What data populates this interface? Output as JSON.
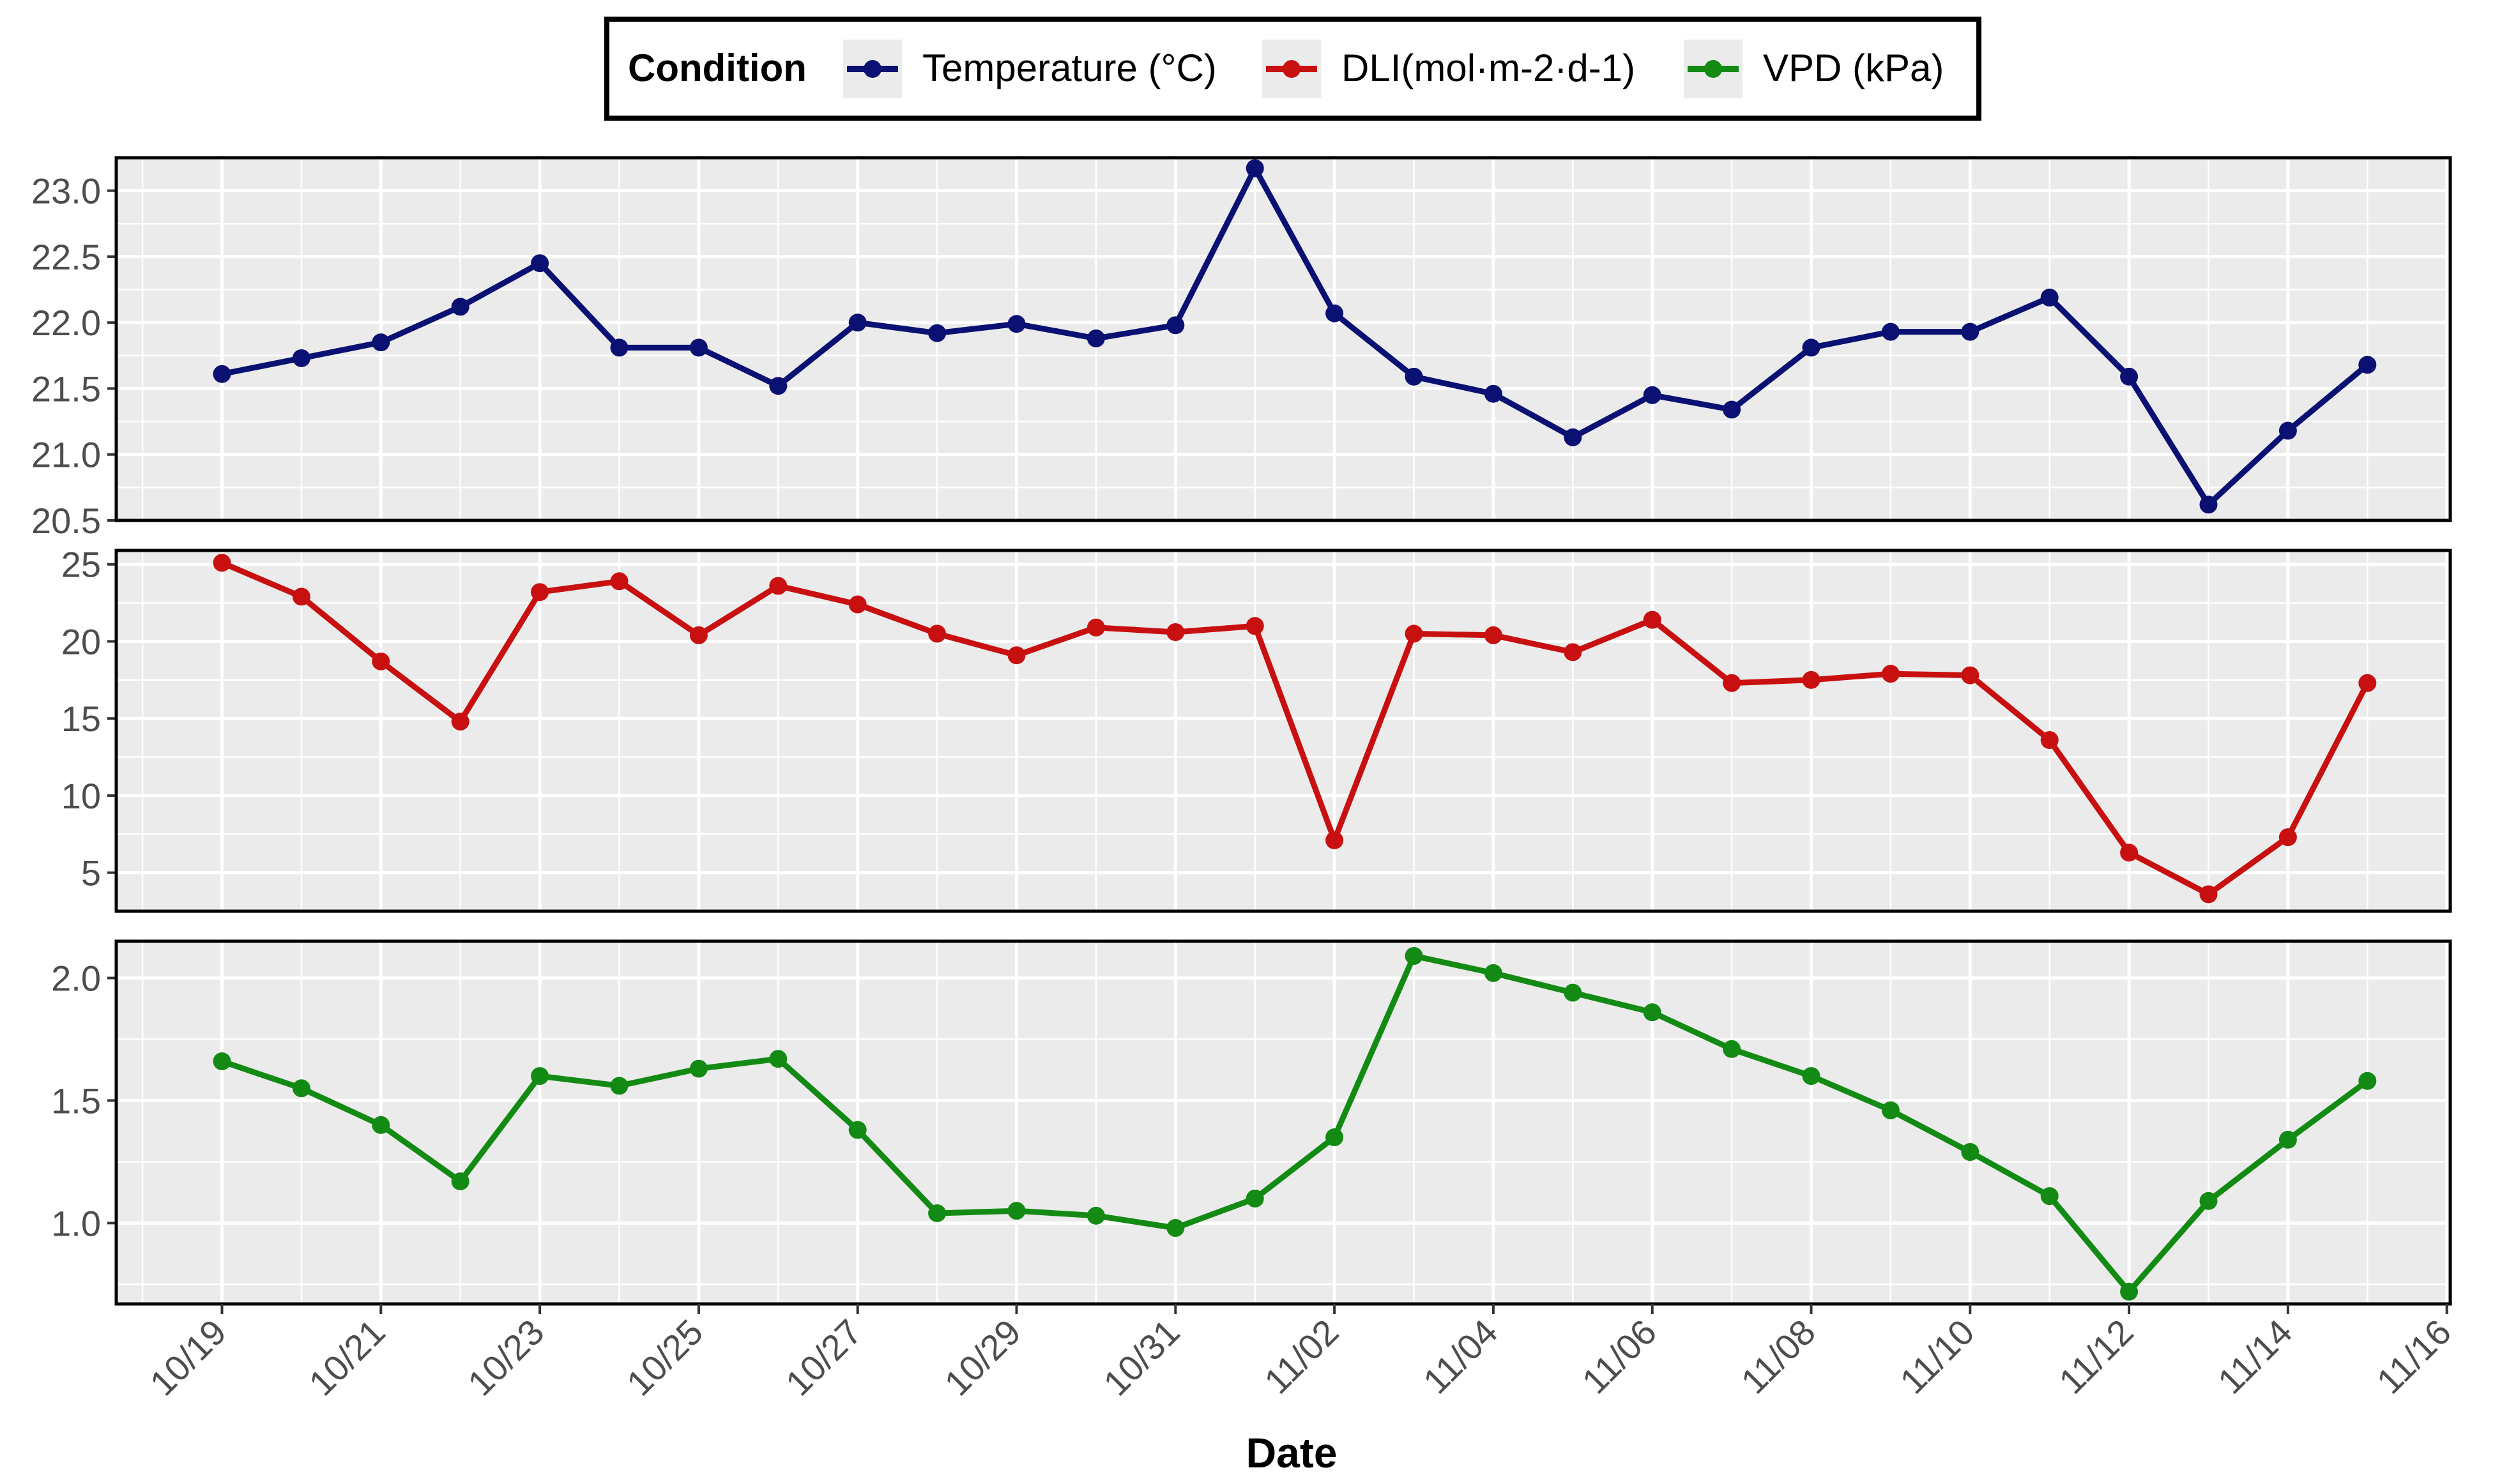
{
  "chart_data": {
    "type": "line",
    "layout": "stacked-facets",
    "xlabel": "Date",
    "x_tick_labels": [
      "10/19",
      "10/21",
      "10/23",
      "10/25",
      "10/27",
      "10/29",
      "10/31",
      "11/02",
      "11/04",
      "11/06",
      "11/08",
      "11/10",
      "11/12",
      "11/14",
      "11/16"
    ],
    "dates": [
      "10/19",
      "10/20",
      "10/21",
      "10/22",
      "10/23",
      "10/24",
      "10/25",
      "10/26",
      "10/27",
      "10/28",
      "10/29",
      "10/30",
      "10/31",
      "11/01",
      "11/02",
      "11/03",
      "11/04",
      "11/05",
      "11/06",
      "11/07",
      "11/08",
      "11/09",
      "11/10",
      "11/11",
      "11/12",
      "11/13",
      "11/14",
      "11/15"
    ],
    "legend": {
      "title": "Condition",
      "position": "top-center",
      "entries": [
        {
          "name": "Temperature (°C)",
          "color": "#0a1172"
        },
        {
          "name": "DLI(mol·m-2·d-1)",
          "color": "#c81010"
        },
        {
          "name": "VPD (kPa)",
          "color": "#138a13"
        }
      ]
    },
    "panels": [
      {
        "series_name": "Temperature (°C)",
        "color": "#0a1172",
        "ylim": [
          20.5,
          23.25
        ],
        "y_ticks": [
          20.5,
          21.0,
          21.5,
          22.0,
          22.5,
          23.0
        ],
        "y_tick_labels": [
          "20.5",
          "21.0",
          "21.5",
          "22.0",
          "22.5",
          "23.0"
        ],
        "values": [
          21.61,
          21.73,
          21.85,
          22.12,
          22.45,
          21.81,
          21.81,
          21.52,
          22.0,
          21.92,
          21.99,
          21.88,
          21.98,
          23.17,
          22.07,
          21.59,
          21.46,
          21.13,
          21.45,
          21.34,
          21.81,
          21.93,
          21.93,
          22.19,
          21.59,
          20.62,
          21.18,
          21.68
        ]
      },
      {
        "series_name": "DLI(mol·m-2·d-1)",
        "color": "#c81010",
        "ylim": [
          2.5,
          25.9
        ],
        "y_ticks": [
          5,
          10,
          15,
          20,
          25
        ],
        "y_tick_labels": [
          "5",
          "10",
          "15",
          "20",
          "25"
        ],
        "values": [
          25.1,
          22.9,
          18.7,
          14.8,
          23.2,
          23.9,
          20.4,
          23.6,
          22.4,
          20.5,
          19.1,
          20.9,
          20.6,
          21.0,
          7.1,
          20.5,
          20.4,
          19.3,
          21.4,
          17.3,
          17.5,
          17.9,
          17.8,
          13.6,
          6.3,
          3.6,
          7.3,
          17.3
        ]
      },
      {
        "series_name": "VPD (kPa)",
        "color": "#138a13",
        "ylim": [
          0.67,
          2.15
        ],
        "y_ticks": [
          1.0,
          1.5,
          2.0
        ],
        "y_tick_labels": [
          "1.0",
          "1.5",
          "2.0"
        ],
        "values": [
          1.66,
          1.55,
          1.4,
          1.17,
          1.6,
          1.56,
          1.63,
          1.67,
          1.38,
          1.04,
          1.05,
          1.03,
          0.98,
          1.1,
          1.35,
          2.09,
          2.02,
          1.94,
          1.86,
          1.71,
          1.6,
          1.46,
          1.29,
          1.11,
          0.72,
          1.09,
          1.34,
          1.58
        ]
      }
    ]
  }
}
